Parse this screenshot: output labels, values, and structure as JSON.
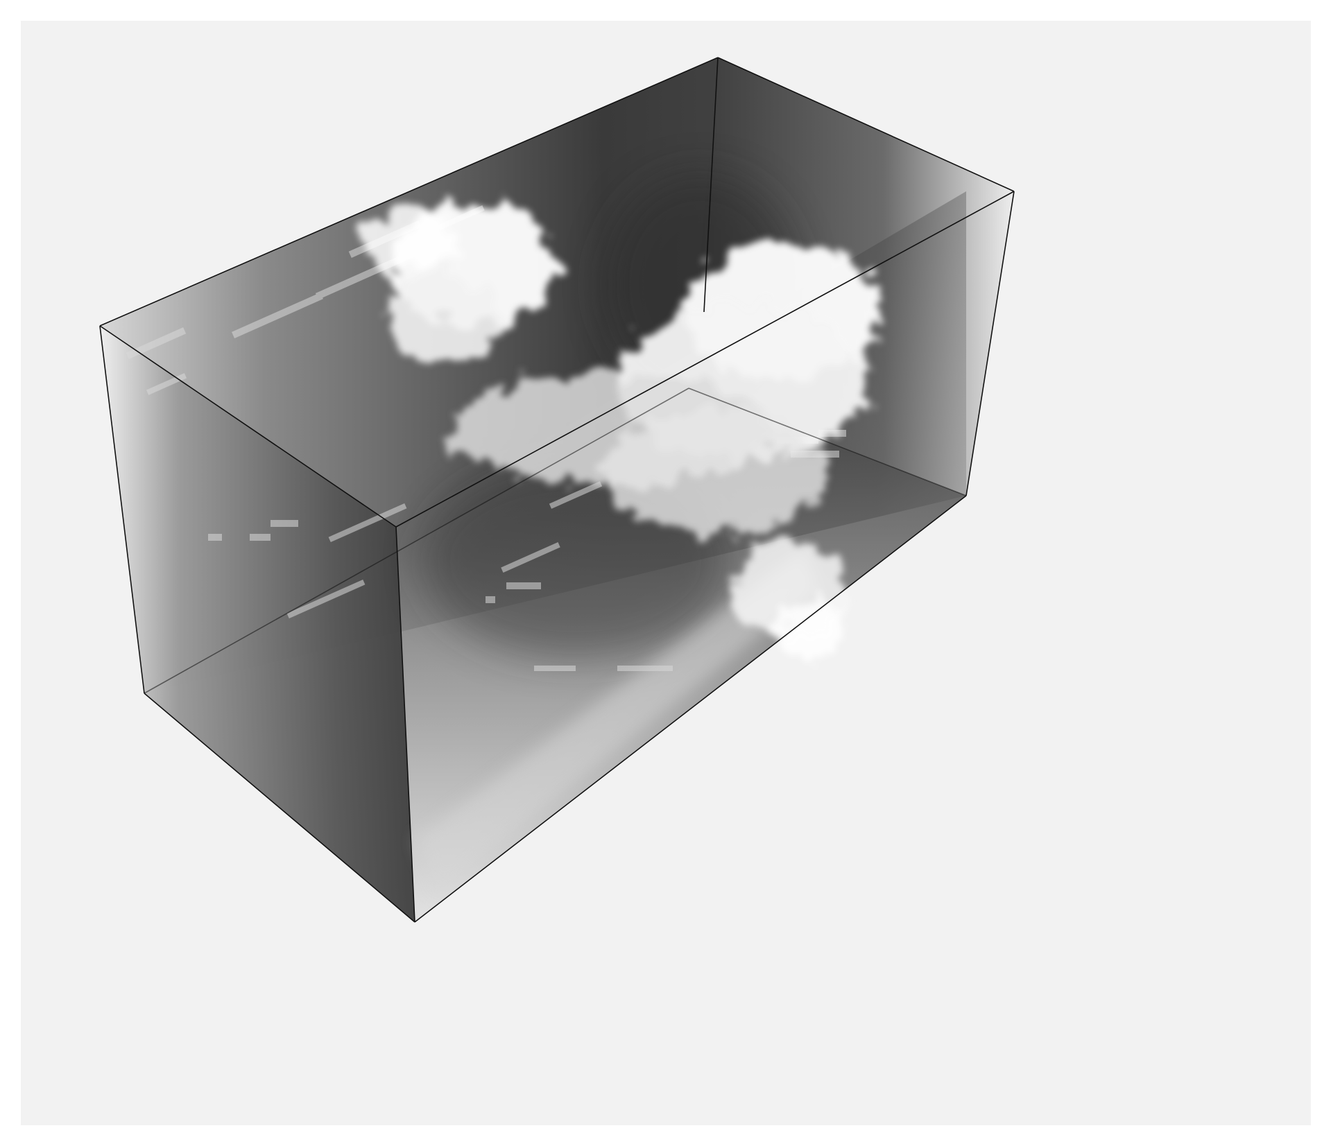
{
  "scene": {
    "subject": "volume-rendered-cloud-field",
    "colors": {
      "background": "#ffffff",
      "viewport_background": "#f2f2f2",
      "box_edge": "#111111",
      "cloud": "#ffffff",
      "shadow": "#3c3c3c"
    }
  }
}
